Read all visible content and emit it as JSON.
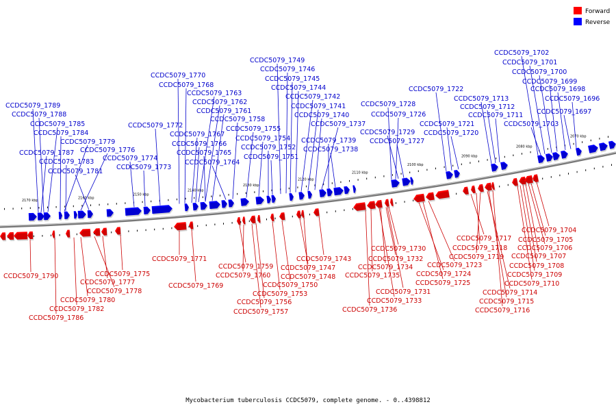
{
  "legend": {
    "forward_label": "Forward",
    "reverse_label": "Reverse",
    "forward_color": "#ff0000",
    "reverse_color": "#0000ff"
  },
  "caption": "Mycobacterium tuberculosis CCDC5079, complete genome. - 0..4398812",
  "ticks": [
    "2170 kbp",
    "2160 kbp",
    "2150 kbp",
    "2140 kbp",
    "2130 kbp",
    "2120 kbp",
    "2110 kbp",
    "2100 kbp",
    "2090 kbp",
    "2080 kbp",
    "2070 kbp"
  ],
  "reverse_genes": [
    "CCDC5079_1789",
    "CCDC5079_1788",
    "CCDC5079_1785",
    "CCDC5079_1784",
    "CCDC5079_1779",
    "CCDC5079_1787",
    "CCDC5079_1776",
    "CCDC5079_1783",
    "CCDC5079_1781",
    "CCDC5079_1772",
    "CCDC5079_1774",
    "CCDC5079_1773",
    "CCDC5079_1770",
    "CCDC5079_1768",
    "CCDC5079_1763",
    "CCDC5079_1762",
    "CCDC5079_1761",
    "CCDC5079_1758",
    "CCDC5079_1767",
    "CCDC5079_1766",
    "CCDC5079_1765",
    "CCDC5079_1764",
    "CCDC5079_1755",
    "CCDC5079_1754",
    "CCDC5079_1752",
    "CCDC5079_1751",
    "CCDC5079_1749",
    "CCDC5079_1746",
    "CCDC5079_1745",
    "CCDC5079_1744",
    "CCDC5079_1742",
    "CCDC5079_1741",
    "CCDC5079_1740",
    "CCDC5079_1737",
    "CCDC5079_1739",
    "CCDC5079_1738",
    "CCDC5079_1728",
    "CCDC5079_1726",
    "CCDC5079_1729",
    "CCDC5079_1727",
    "CCDC5079_1722",
    "CCDC5079_1713",
    "CCDC5079_1712",
    "CCDC5079_1711",
    "CCDC5079_1721",
    "CCDC5079_1720",
    "CCDC5079_1702",
    "CCDC5079_1701",
    "CCDC5079_1700",
    "CCDC5079_1699",
    "CCDC5079_1698",
    "CCDC5079_1696",
    "CCDC5079_1697",
    "CCDC5079_1703"
  ],
  "forward_genes": [
    "CCDC5079_1790",
    "CCDC5079_1777",
    "CCDC5079_1778",
    "CCDC5079_1780",
    "CCDC5079_1782",
    "CCDC5079_1786",
    "CCDC5079_1775",
    "CCDC5079_1771",
    "CCDC5079_1769",
    "CCDC5079_1759",
    "CCDC5079_1760",
    "CCDC5079_1747",
    "CCDC5079_1748",
    "CCDC5079_1750",
    "CCDC5079_1753",
    "CCDC5079_1756",
    "CCDC5079_1757",
    "CCDC5079_1743",
    "CCDC5079_1730",
    "CCDC5079_1732",
    "CCDC5079_1734",
    "CCDC5079_1735",
    "CCDC5079_1731",
    "CCDC5079_1733",
    "CCDC5079_1736",
    "CCDC5079_1723",
    "CCDC5079_1724",
    "CCDC5079_1725",
    "CCDC5079_1717",
    "CCDC5079_1718",
    "CCDC5079_1719",
    "CCDC5079_1714",
    "CCDC5079_1715",
    "CCDC5079_1716",
    "CCDC5079_1704",
    "CCDC5079_1705",
    "CCDC5079_1706",
    "CCDC5079_1707",
    "CCDC5079_1708",
    "CCDC5079_1709",
    "CCDC5079_1710"
  ]
}
